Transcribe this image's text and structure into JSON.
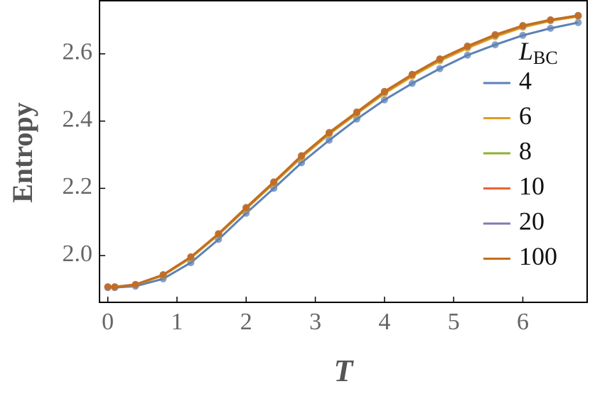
{
  "chart_data": {
    "type": "line",
    "x_label": "T",
    "y_label": "Entropy",
    "legend_title": "L",
    "legend_title_sub": "BC",
    "x": [
      0,
      0.1,
      0.4,
      0.8,
      1.2,
      1.6,
      2.0,
      2.4,
      2.8,
      3.2,
      3.6,
      4.0,
      4.4,
      4.8,
      5.2,
      5.6,
      6.0,
      6.4,
      6.8
    ],
    "series": [
      {
        "name": "4",
        "color": "#5e81b5",
        "values": [
          1.905,
          1.905,
          1.909,
          1.931,
          1.979,
          2.048,
          2.126,
          2.2,
          2.276,
          2.343,
          2.406,
          2.463,
          2.512,
          2.556,
          2.596,
          2.627,
          2.655,
          2.676,
          2.693
        ]
      },
      {
        "name": "6",
        "color": "#e19c24",
        "values": [
          1.907,
          1.907,
          1.913,
          1.941,
          1.993,
          2.062,
          2.139,
          2.215,
          2.292,
          2.361,
          2.422,
          2.482,
          2.533,
          2.579,
          2.617,
          2.651,
          2.679,
          2.698,
          2.711
        ]
      },
      {
        "name": "8",
        "color": "#8fb032",
        "values": [
          1.907,
          1.907,
          1.914,
          1.942,
          1.995,
          2.064,
          2.141,
          2.217,
          2.295,
          2.364,
          2.425,
          2.486,
          2.537,
          2.583,
          2.621,
          2.655,
          2.682,
          2.7,
          2.713
        ]
      },
      {
        "name": "10",
        "color": "#eb6235",
        "values": [
          1.907,
          1.907,
          1.914,
          1.943,
          1.996,
          2.065,
          2.142,
          2.218,
          2.296,
          2.365,
          2.426,
          2.487,
          2.538,
          2.584,
          2.622,
          2.656,
          2.683,
          2.701,
          2.714
        ]
      },
      {
        "name": "20",
        "color": "#8778b3",
        "values": [
          1.907,
          1.907,
          1.914,
          1.943,
          1.996,
          2.065,
          2.143,
          2.219,
          2.297,
          2.366,
          2.427,
          2.488,
          2.539,
          2.585,
          2.623,
          2.657,
          2.684,
          2.701,
          2.714
        ]
      },
      {
        "name": "100",
        "color": "#c56e1a",
        "values": [
          1.907,
          1.907,
          1.914,
          1.943,
          1.996,
          2.065,
          2.143,
          2.219,
          2.297,
          2.366,
          2.427,
          2.488,
          2.539,
          2.585,
          2.623,
          2.657,
          2.684,
          2.701,
          2.714
        ]
      }
    ],
    "xlim": [
      -0.12,
      6.93
    ],
    "ylim": [
      1.861,
      2.758
    ],
    "xticks": [
      0,
      1,
      2,
      3,
      4,
      5,
      6
    ],
    "yticks": [
      {
        "value": 2.0,
        "label": "2.0"
      },
      {
        "value": 2.2,
        "label": "2.2"
      },
      {
        "value": 2.4,
        "label": "2.4"
      },
      {
        "value": 2.6,
        "label": "2.6"
      }
    ]
  }
}
